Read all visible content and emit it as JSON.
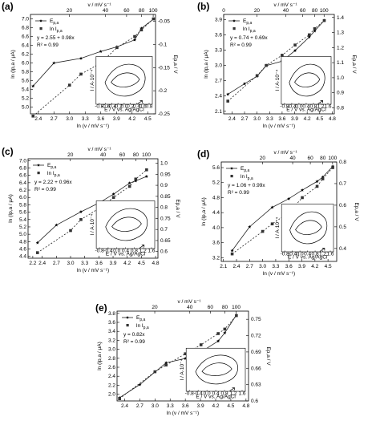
{
  "chart_data": [
    {
      "panel": "(a)",
      "type": "line",
      "x_bottom": {
        "label": "ln (v / mV s⁻¹)",
        "ticks": [
          2.4,
          2.7,
          3.0,
          3.3,
          3.6,
          3.9,
          4.2,
          4.5
        ],
        "lim": [
          2.25,
          4.65
        ]
      },
      "x_top": {
        "label": "v / mV s⁻¹",
        "ticks": [
          20,
          40,
          60,
          80,
          100
        ]
      },
      "y_left": {
        "label": "ln (Ip,a / μA)",
        "ticks": [
          5.0,
          5.2,
          5.4,
          5.6,
          5.8,
          6.0,
          6.2,
          6.4,
          6.6,
          6.8,
          7.0
        ],
        "lim": [
          4.85,
          7.1
        ]
      },
      "y_right": {
        "label": "Ep,a / V",
        "ticks": [
          -0.25,
          -0.2,
          -0.15,
          -0.1,
          -0.05
        ],
        "lim": [
          -0.25,
          -0.035
        ]
      },
      "legend": [
        "Ep,a",
        "ln Ip,a"
      ],
      "annotations": [
        "y = 2.55 + 0.98x",
        "R² = 0.99"
      ],
      "series_E": [
        {
          "x": 2.3,
          "y": -0.19
        },
        {
          "x": 2.7,
          "y": -0.14
        },
        {
          "x": 3.22,
          "y": -0.13
        },
        {
          "x": 3.6,
          "y": -0.115
        },
        {
          "x": 3.91,
          "y": -0.105
        },
        {
          "x": 4.25,
          "y": -0.09
        },
        {
          "x": 4.38,
          "y": -0.065
        },
        {
          "x": 4.61,
          "y": -0.045
        }
      ],
      "series_lnI": [
        {
          "x": 2.3,
          "y": 4.8
        },
        {
          "x": 3.0,
          "y": 5.5
        },
        {
          "x": 3.22,
          "y": 5.75
        },
        {
          "x": 3.6,
          "y": 6.0
        },
        {
          "x": 3.91,
          "y": 6.35
        },
        {
          "x": 4.25,
          "y": 6.6
        },
        {
          "x": 4.38,
          "y": 6.75
        },
        {
          "x": 4.61,
          "y": 7.0
        }
      ],
      "inset": {
        "xticks": [
          "-0.8",
          "-0.6",
          "-0.4",
          "-0.2",
          "0.0",
          "0.2",
          "0.4",
          "0.6",
          "0.8"
        ]
      }
    },
    {
      "panel": "(b)",
      "type": "line",
      "x_bottom": {
        "label": "ln (v / mV s⁻¹)",
        "ticks": [
          2.4,
          2.7,
          3.0,
          3.3,
          3.6,
          3.9,
          4.2,
          4.5,
          4.8
        ],
        "lim": [
          2.2,
          4.85
        ]
      },
      "x_top": {
        "label": "v / mV s⁻¹",
        "ticks": [
          0,
          20,
          40,
          60,
          80,
          100
        ]
      },
      "y_left": {
        "label": "ln (Ip,a / μA)",
        "ticks": [
          2.1,
          2.4,
          2.7,
          3.0,
          3.3,
          3.6,
          3.9
        ],
        "lim": [
          2.05,
          4.0
        ]
      },
      "y_right": {
        "label": "Ep,a / V",
        "ticks": [
          0.8,
          0.9,
          1.0,
          1.1,
          1.2,
          1.3,
          1.4
        ],
        "lim": [
          0.76,
          1.42
        ]
      },
      "legend": [
        "Ep,a",
        "ln Ip,a"
      ],
      "annotations": [
        "y = 0.74 + 0.69x",
        "R² = 0.99"
      ],
      "series_E": [
        {
          "x": 2.3,
          "y": 0.89
        },
        {
          "x": 2.7,
          "y": 0.96
        },
        {
          "x": 3.0,
          "y": 1.01
        },
        {
          "x": 3.22,
          "y": 1.08
        },
        {
          "x": 3.6,
          "y": 1.11
        },
        {
          "x": 3.91,
          "y": 1.18
        },
        {
          "x": 4.25,
          "y": 1.27
        },
        {
          "x": 4.38,
          "y": 1.31
        },
        {
          "x": 4.61,
          "y": 1.38
        }
      ],
      "series_lnI": [
        {
          "x": 2.3,
          "y": 2.3
        },
        {
          "x": 3.0,
          "y": 2.8
        },
        {
          "x": 3.22,
          "y": 3.0
        },
        {
          "x": 3.6,
          "y": 3.2
        },
        {
          "x": 3.91,
          "y": 3.4
        },
        {
          "x": 4.25,
          "y": 3.6
        },
        {
          "x": 4.38,
          "y": 3.72
        },
        {
          "x": 4.61,
          "y": 3.88
        }
      ],
      "inset": {
        "xticks": [
          "-0.8",
          "-0.4",
          "0.0",
          "0.4",
          "0.8",
          "1.2",
          "1.6"
        ]
      }
    },
    {
      "panel": "(c)",
      "type": "line",
      "x_bottom": {
        "label": "ln (v / mV s⁻¹)",
        "ticks": [
          2.2,
          2.4,
          2.7,
          3.0,
          3.3,
          3.6,
          3.9,
          4.2,
          4.5,
          4.8
        ],
        "lim": [
          2.1,
          4.85
        ]
      },
      "x_top": {
        "label": "v / mV s⁻¹",
        "ticks": [
          20,
          40,
          60,
          80,
          100
        ]
      },
      "y_left": {
        "label": "ln (Ip,a / μA)",
        "ticks": [
          4.4,
          4.6,
          4.8,
          5.0,
          5.2,
          5.4,
          5.6,
          5.8,
          6.0,
          6.2,
          6.4,
          6.6,
          6.8,
          7.0
        ],
        "lim": [
          4.35,
          7.05
        ]
      },
      "y_right": {
        "label": "Ep,a / V",
        "ticks": [
          0.6,
          0.65,
          0.7,
          0.75,
          0.8,
          0.85,
          0.9,
          0.95,
          1.0
        ],
        "lim": [
          0.57,
          1.02
        ]
      },
      "legend": [
        "Ep,a",
        "ln Ip,a"
      ],
      "annotations": [
        "y = 2.22 + 0.96x",
        "R² = 0.99"
      ],
      "series_E": [
        {
          "x": 2.3,
          "y": 0.64
        },
        {
          "x": 2.7,
          "y": 0.72
        },
        {
          "x": 3.22,
          "y": 0.78
        },
        {
          "x": 3.6,
          "y": 0.82
        },
        {
          "x": 3.91,
          "y": 0.86
        },
        {
          "x": 4.25,
          "y": 0.91
        },
        {
          "x": 4.38,
          "y": 0.92
        },
        {
          "x": 4.61,
          "y": 0.94
        }
      ],
      "series_lnI": [
        {
          "x": 2.3,
          "y": 4.5
        },
        {
          "x": 3.0,
          "y": 5.1
        },
        {
          "x": 3.22,
          "y": 5.4
        },
        {
          "x": 3.6,
          "y": 5.7
        },
        {
          "x": 3.91,
          "y": 6.0
        },
        {
          "x": 4.25,
          "y": 6.3
        },
        {
          "x": 4.38,
          "y": 6.5
        },
        {
          "x": 4.61,
          "y": 6.75
        }
      ],
      "inset": {
        "xticks": [
          "-0.8",
          "-0.4",
          "0.0",
          "0.4",
          "0.8",
          "1.2",
          "1.6"
        ]
      }
    },
    {
      "panel": "(d)",
      "type": "line",
      "x_bottom": {
        "label": "ln (v / mV s⁻¹)",
        "ticks": [
          2.1,
          2.4,
          2.7,
          3.0,
          3.3,
          3.6,
          3.9,
          4.2,
          4.5
        ],
        "lim": [
          2.05,
          4.7
        ]
      },
      "x_top": {
        "label": "v / mV s⁻¹",
        "ticks": [
          20,
          40,
          60,
          80,
          100
        ]
      },
      "y_left": {
        "label": "ln (Ip,a / μA)",
        "ticks": [
          3.2,
          3.6,
          4.0,
          4.4,
          4.8,
          5.2,
          5.6
        ],
        "lim": [
          3.1,
          5.75
        ]
      },
      "y_right": {
        "label": "Ep,a / V",
        "ticks": [
          0.4,
          0.5,
          0.6,
          0.7,
          0.8
        ],
        "lim": [
          0.34,
          0.8
        ]
      },
      "legend": [
        "Ep,a",
        "ln Ip,a"
      ],
      "annotations": [
        "y = 1.06 + 0.99x",
        "R² = 0.99"
      ],
      "series_E": [
        {
          "x": 2.3,
          "y": 0.39
        },
        {
          "x": 2.7,
          "y": 0.5
        },
        {
          "x": 3.22,
          "y": 0.59
        },
        {
          "x": 3.6,
          "y": 0.63
        },
        {
          "x": 3.91,
          "y": 0.67
        },
        {
          "x": 4.25,
          "y": 0.71
        },
        {
          "x": 4.38,
          "y": 0.73
        },
        {
          "x": 4.61,
          "y": 0.78
        }
      ],
      "series_lnI": [
        {
          "x": 2.3,
          "y": 3.3
        },
        {
          "x": 3.0,
          "y": 3.9
        },
        {
          "x": 3.22,
          "y": 4.1
        },
        {
          "x": 3.6,
          "y": 4.4
        },
        {
          "x": 3.91,
          "y": 4.8
        },
        {
          "x": 4.25,
          "y": 5.1
        },
        {
          "x": 4.38,
          "y": 5.3
        },
        {
          "x": 4.61,
          "y": 5.6
        }
      ],
      "inset": {
        "xticks": [
          "-0.8",
          "-0.4",
          "0.0",
          "0.4",
          "0.8",
          "1.2",
          "1.6"
        ]
      }
    },
    {
      "panel": "(e)",
      "type": "line",
      "x_bottom": {
        "label": "ln (v / mV s⁻¹)",
        "ticks": [
          2.4,
          2.7,
          3.0,
          3.3,
          3.6,
          3.9,
          4.2,
          4.5,
          4.8
        ],
        "lim": [
          2.25,
          4.85
        ]
      },
      "x_top": {
        "label": "v / mV s⁻¹",
        "ticks": [
          20,
          40,
          60,
          80,
          100
        ]
      },
      "y_left": {
        "label": "ln (Ip,a / μA)",
        "ticks": [
          2.0,
          2.2,
          2.4,
          2.6,
          2.8,
          3.0,
          3.2,
          3.4,
          3.6,
          3.8
        ],
        "lim": [
          1.85,
          3.85
        ]
      },
      "y_right": {
        "label": "Ep,a / V",
        "ticks": [
          0.6,
          0.63,
          0.66,
          0.69,
          0.72,
          0.75
        ],
        "lim": [
          0.6,
          0.765
        ]
      },
      "legend": [
        "Ep,a",
        "ln Ip,a"
      ],
      "annotations": [
        "y = 0.82x",
        "R² = 0.99"
      ],
      "series_E": [
        {
          "x": 2.3,
          "y": 0.606
        },
        {
          "x": 2.7,
          "y": 0.63
        },
        {
          "x": 3.22,
          "y": 0.67
        },
        {
          "x": 3.6,
          "y": 0.678
        },
        {
          "x": 3.91,
          "y": 0.69
        },
        {
          "x": 4.25,
          "y": 0.71
        },
        {
          "x": 4.38,
          "y": 0.725
        },
        {
          "x": 4.61,
          "y": 0.758
        }
      ],
      "series_lnI": [
        {
          "x": 2.3,
          "y": 1.9
        },
        {
          "x": 3.0,
          "y": 2.5
        },
        {
          "x": 3.22,
          "y": 2.65
        },
        {
          "x": 3.6,
          "y": 2.9
        },
        {
          "x": 3.91,
          "y": 3.1
        },
        {
          "x": 4.25,
          "y": 3.35
        },
        {
          "x": 4.38,
          "y": 3.45
        },
        {
          "x": 4.61,
          "y": 3.75
        }
      ],
      "inset": {
        "xticks": [
          "-0.8",
          "-0.4",
          "0.0",
          "0.4",
          "0.8",
          "1.2",
          "1.6"
        ]
      }
    }
  ],
  "labels": {
    "legend_E_main": "E",
    "legend_E_sub": "p,a",
    "legend_I_main": "ln I",
    "legend_I_sub": "p,a",
    "inset_xlabel": "E / V vs. Ag/AgCl",
    "inset_ylabel": "I / A·10⁻⁴"
  }
}
